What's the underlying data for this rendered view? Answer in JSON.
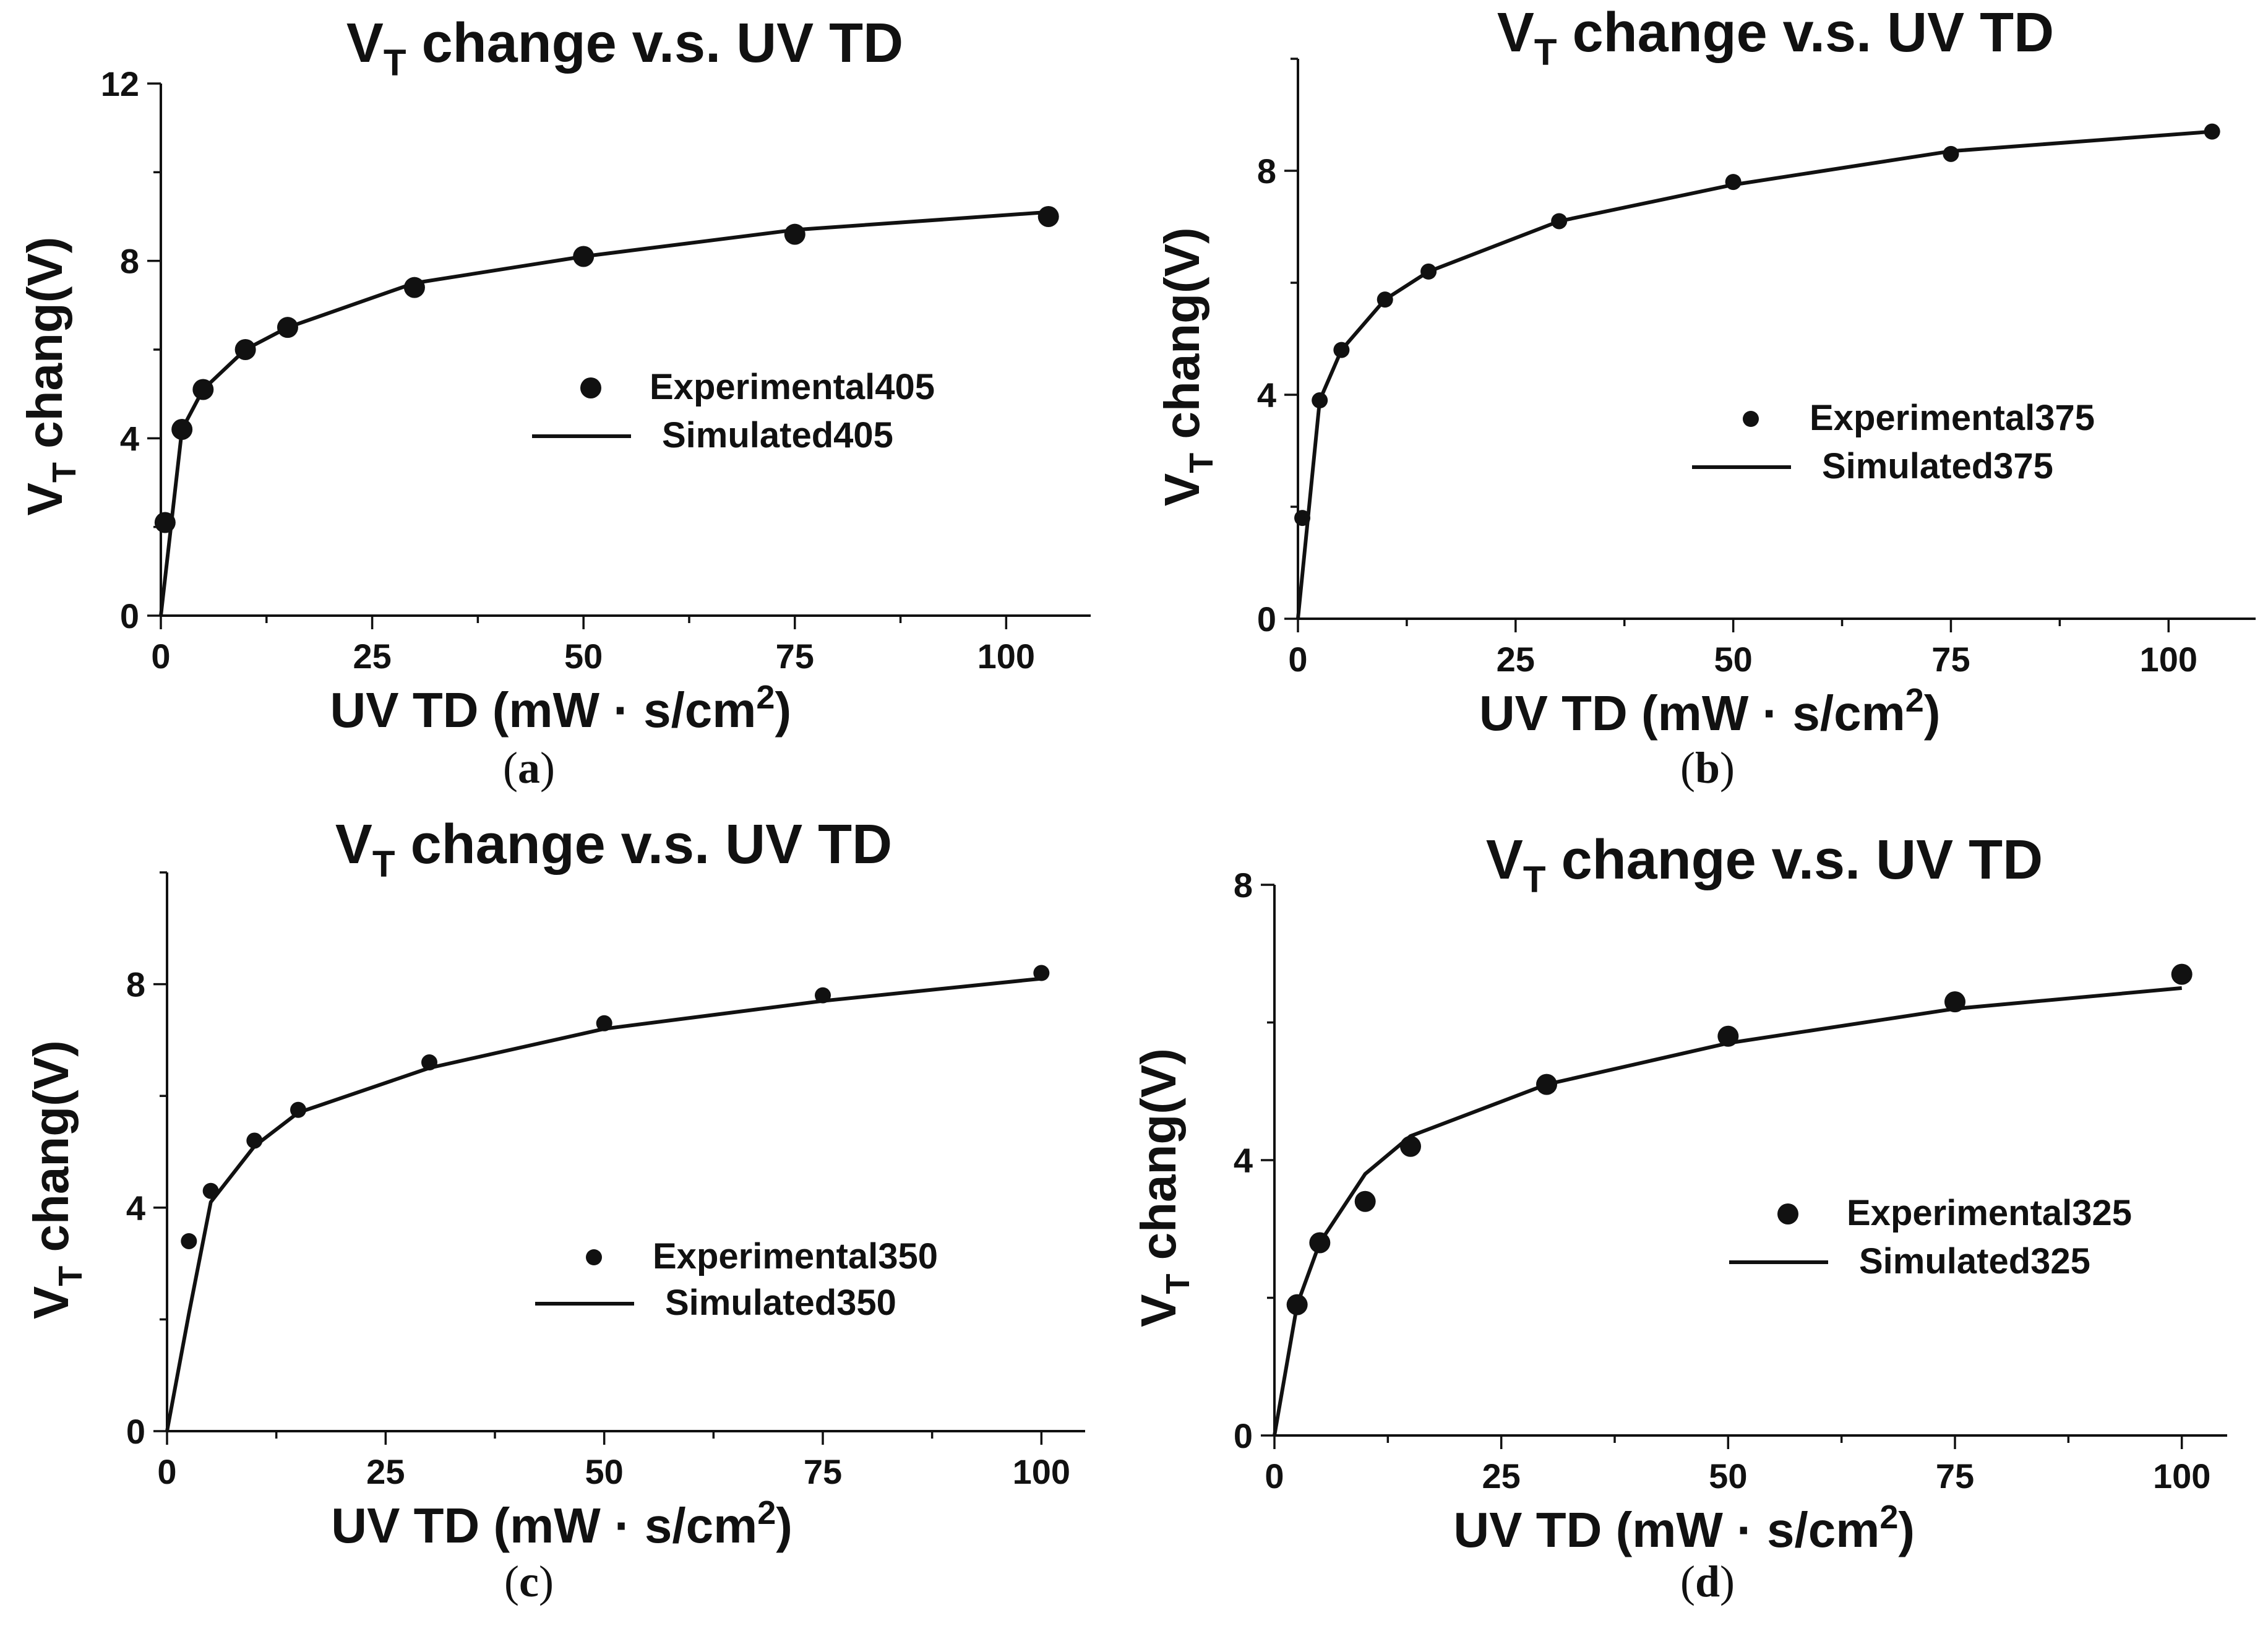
{
  "chart_data": [
    {
      "type": "scatter",
      "panel": "a",
      "caption": "(a)",
      "caption_letter": "a",
      "title": {
        "main": "V",
        "sub": "T",
        "rest": " change v.s. UV TD"
      },
      "xlabel": {
        "main": "UV TD (mW · s/cm",
        "sup": "2",
        "end": ")"
      },
      "ylabel": {
        "main": "V",
        "sub": "T",
        "rest": " chang(V)"
      },
      "xlim": [
        0,
        110
      ],
      "ylim": [
        0,
        12
      ],
      "xticks": [
        0,
        25,
        50,
        75,
        100
      ],
      "yticks": [
        0,
        4,
        8,
        12
      ],
      "legend": {
        "position": "center-right",
        "experimental": "Experimental405",
        "simulated": "Simulated405"
      },
      "experimental": {
        "x": [
          0.5,
          2.5,
          5,
          10,
          15,
          30,
          50,
          75,
          105
        ],
        "y": [
          2.1,
          4.2,
          5.1,
          6.0,
          6.5,
          7.4,
          8.1,
          8.6,
          9.0
        ]
      },
      "simulated": {
        "x": [
          0,
          2.5,
          5,
          10,
          15,
          30,
          50,
          75,
          105
        ],
        "y": [
          0,
          4.2,
          5.1,
          6.0,
          6.5,
          7.5,
          8.1,
          8.7,
          9.1
        ]
      },
      "marker_size": "large"
    },
    {
      "type": "scatter",
      "panel": "b",
      "caption": "(b)",
      "caption_letter": "b",
      "title": {
        "main": "V",
        "sub": "T",
        "rest": " change v.s. UV TD"
      },
      "xlabel": {
        "main": "UV TD (mW · s/cm",
        "sup": "2",
        "end": ")"
      },
      "ylabel": {
        "main": "V",
        "sub": "T",
        "rest": " chang(V)"
      },
      "xlim": [
        0,
        110
      ],
      "ylim": [
        0,
        10
      ],
      "xticks": [
        0,
        25,
        50,
        75,
        100
      ],
      "yticks": [
        0,
        4,
        8
      ],
      "legend": {
        "position": "center-right",
        "experimental": "Experimental375",
        "simulated": "Simulated375"
      },
      "experimental": {
        "x": [
          0.5,
          2.5,
          5,
          10,
          15,
          30,
          50,
          75,
          105
        ],
        "y": [
          1.8,
          3.9,
          4.8,
          5.7,
          6.2,
          7.1,
          7.8,
          8.3,
          8.7
        ]
      },
      "simulated": {
        "x": [
          0,
          2.5,
          5,
          10,
          15,
          30,
          50,
          75,
          105
        ],
        "y": [
          0,
          3.9,
          4.8,
          5.7,
          6.2,
          7.1,
          7.75,
          8.35,
          8.7
        ]
      },
      "marker_size": "small"
    },
    {
      "type": "scatter",
      "panel": "c",
      "caption": "(c)",
      "caption_letter": "c",
      "title": {
        "main": "V",
        "sub": "T",
        "rest": " change v.s. UV TD"
      },
      "xlabel": {
        "main": "UV TD (mW · s/cm",
        "sup": "2",
        "end": ")"
      },
      "ylabel": {
        "main": "V",
        "sub": "T",
        "rest": " chang(V)"
      },
      "xlim": [
        0,
        105
      ],
      "ylim": [
        0,
        10
      ],
      "xticks": [
        0,
        25,
        50,
        75,
        100
      ],
      "yticks": [
        0,
        4,
        8
      ],
      "legend": {
        "position": "center-right",
        "experimental": "Experimental350",
        "simulated": "Simulated350"
      },
      "experimental": {
        "x": [
          2.5,
          5,
          10,
          15,
          30,
          50,
          75,
          100
        ],
        "y": [
          3.4,
          4.3,
          5.2,
          5.75,
          6.6,
          7.3,
          7.8,
          8.2
        ]
      },
      "simulated": {
        "x": [
          0,
          2.5,
          5,
          10,
          15,
          30,
          50,
          75,
          100
        ],
        "y": [
          0,
          2.1,
          4.1,
          5.1,
          5.7,
          6.5,
          7.2,
          7.7,
          8.1
        ]
      },
      "marker_size": "small"
    },
    {
      "type": "scatter",
      "panel": "d",
      "caption": "(d)",
      "caption_letter": "d",
      "title": {
        "main": "V",
        "sub": "T",
        "rest": " change v.s. UV TD"
      },
      "xlabel": {
        "main": "UV TD (mW · s/cm",
        "sup": "2",
        "end": ")"
      },
      "ylabel": {
        "main": "V",
        "sub": "T",
        "rest": " chang(V)"
      },
      "xlim": [
        0,
        105
      ],
      "ylim": [
        0,
        8
      ],
      "xticks": [
        0,
        25,
        50,
        75,
        100
      ],
      "yticks": [
        0,
        4,
        8
      ],
      "legend": {
        "position": "center-right",
        "experimental": "Experimental325",
        "simulated": "Simulated325"
      },
      "experimental": {
        "x": [
          2.5,
          5,
          10,
          15,
          30,
          50,
          75,
          100
        ],
        "y": [
          1.9,
          2.8,
          3.4,
          4.2,
          5.1,
          5.8,
          6.3,
          6.7
        ]
      },
      "simulated": {
        "x": [
          0,
          2.5,
          5,
          10,
          15,
          30,
          50,
          75,
          100
        ],
        "y": [
          0,
          1.9,
          2.8,
          3.8,
          4.35,
          5.1,
          5.7,
          6.2,
          6.5
        ]
      },
      "marker_size": "large"
    }
  ]
}
